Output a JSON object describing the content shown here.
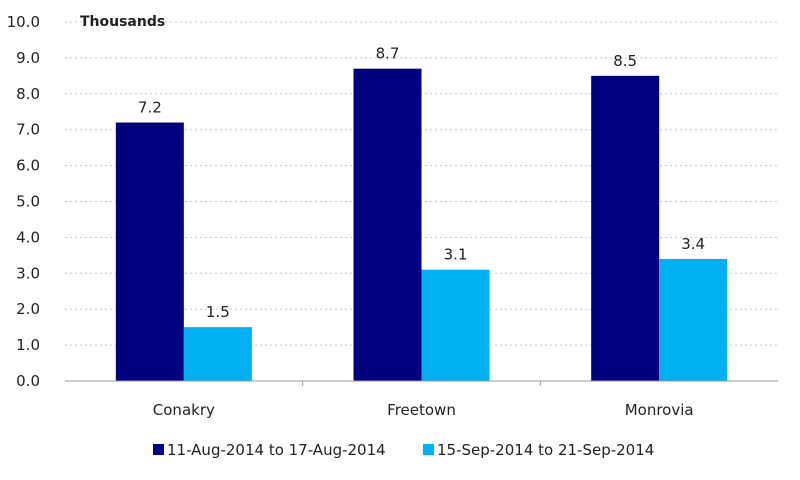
{
  "chart_data": {
    "type": "bar",
    "unit_label": "Thousands",
    "categories": [
      "Conakry",
      "Freetown",
      "Monrovia"
    ],
    "series": [
      {
        "name": "11-Aug-2014 to 17-Aug-2014",
        "values": [
          7.2,
          8.7,
          8.5
        ],
        "color": "#00007f"
      },
      {
        "name": "15-Sep-2014 to 21-Sep-2014",
        "values": [
          1.5,
          3.1,
          3.4
        ],
        "color": "#00b0f0"
      }
    ],
    "data_labels": [
      [
        "7.2",
        "8.7",
        "8.5"
      ],
      [
        "1.5",
        "3.1",
        "3.4"
      ]
    ],
    "ylim": [
      0,
      10
    ],
    "yticks": [
      "0.0",
      "1.0",
      "2.0",
      "3.0",
      "4.0",
      "5.0",
      "6.0",
      "7.0",
      "8.0",
      "9.0",
      "10.0"
    ],
    "grid": true,
    "legend_position": "bottom"
  }
}
